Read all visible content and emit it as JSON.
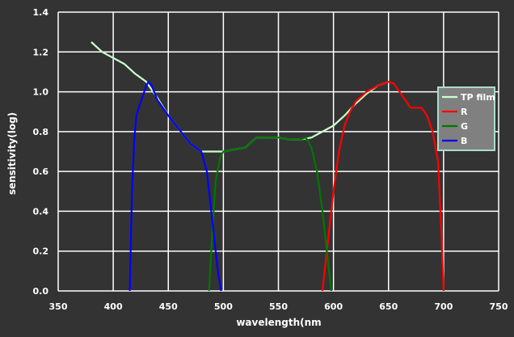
{
  "chart_data": {
    "type": "line",
    "title": "",
    "xlabel": "wavelength(nm",
    "ylabel": "sensitivity(log)",
    "xlim": [
      350,
      750
    ],
    "ylim": [
      0.0,
      1.4
    ],
    "x_ticks": [
      "350",
      "400",
      "450",
      "500",
      "550",
      "600",
      "650",
      "700",
      "750"
    ],
    "y_ticks": [
      "0.0",
      "0.2",
      "0.4",
      "0.6",
      "0.8",
      "1.0",
      "1.2",
      "1.4"
    ],
    "grid": true,
    "legend": "right",
    "colors": {
      "background": "#333333",
      "grid": "#ffffff",
      "text": "#ffffff",
      "legend_bg": "#808080",
      "legend_border": "#aaddcc"
    },
    "series": [
      {
        "name": "TP film",
        "color": "#ccffcc",
        "points": [
          [
            380,
            1.25
          ],
          [
            390,
            1.2
          ],
          [
            400,
            1.17
          ],
          [
            410,
            1.14
          ],
          [
            420,
            1.09
          ],
          [
            430,
            1.05
          ],
          [
            440,
            0.97
          ],
          [
            450,
            0.88
          ],
          [
            460,
            0.81
          ],
          [
            470,
            0.74
          ],
          [
            480,
            0.7
          ],
          [
            490,
            0.7
          ],
          [
            500,
            0.7
          ],
          [
            510,
            0.71
          ],
          [
            520,
            0.72
          ],
          [
            530,
            0.77
          ],
          [
            540,
            0.77
          ],
          [
            550,
            0.77
          ],
          [
            560,
            0.76
          ],
          [
            570,
            0.76
          ],
          [
            580,
            0.77
          ],
          [
            590,
            0.8
          ],
          [
            600,
            0.83
          ],
          [
            610,
            0.88
          ],
          [
            620,
            0.94
          ],
          [
            630,
            0.99
          ],
          [
            640,
            1.03
          ],
          [
            650,
            1.05
          ]
        ]
      },
      {
        "name": "R",
        "color": "#ff0000",
        "points": [
          [
            590,
            0.0
          ],
          [
            594,
            0.2
          ],
          [
            600,
            0.5
          ],
          [
            605,
            0.7
          ],
          [
            610,
            0.83
          ],
          [
            615,
            0.9
          ],
          [
            620,
            0.95
          ],
          [
            630,
            1.0
          ],
          [
            640,
            1.03
          ],
          [
            650,
            1.05
          ],
          [
            655,
            1.04
          ],
          [
            660,
            1.0
          ],
          [
            665,
            0.96
          ],
          [
            670,
            0.92
          ],
          [
            680,
            0.92
          ],
          [
            685,
            0.88
          ],
          [
            690,
            0.8
          ],
          [
            695,
            0.65
          ],
          [
            698,
            0.3
          ],
          [
            700,
            0.0
          ]
        ]
      },
      {
        "name": "G",
        "color": "#007700",
        "points": [
          [
            487,
            0.0
          ],
          [
            490,
            0.3
          ],
          [
            493,
            0.55
          ],
          [
            497,
            0.67
          ],
          [
            500,
            0.7
          ],
          [
            510,
            0.71
          ],
          [
            520,
            0.72
          ],
          [
            530,
            0.77
          ],
          [
            540,
            0.77
          ],
          [
            550,
            0.77
          ],
          [
            560,
            0.76
          ],
          [
            570,
            0.76
          ],
          [
            575,
            0.77
          ],
          [
            580,
            0.72
          ],
          [
            585,
            0.6
          ],
          [
            590,
            0.4
          ],
          [
            595,
            0.15
          ],
          [
            598,
            0.0
          ]
        ]
      },
      {
        "name": "B",
        "color": "#0000ff",
        "points": [
          [
            415,
            0.0
          ],
          [
            417,
            0.5
          ],
          [
            419,
            0.75
          ],
          [
            421,
            0.88
          ],
          [
            425,
            0.95
          ],
          [
            430,
            1.03
          ],
          [
            432,
            1.05
          ],
          [
            435,
            1.03
          ],
          [
            440,
            0.96
          ],
          [
            450,
            0.88
          ],
          [
            460,
            0.81
          ],
          [
            470,
            0.74
          ],
          [
            480,
            0.7
          ],
          [
            485,
            0.6
          ],
          [
            490,
            0.35
          ],
          [
            495,
            0.1
          ],
          [
            498,
            0.0
          ]
        ]
      }
    ]
  }
}
